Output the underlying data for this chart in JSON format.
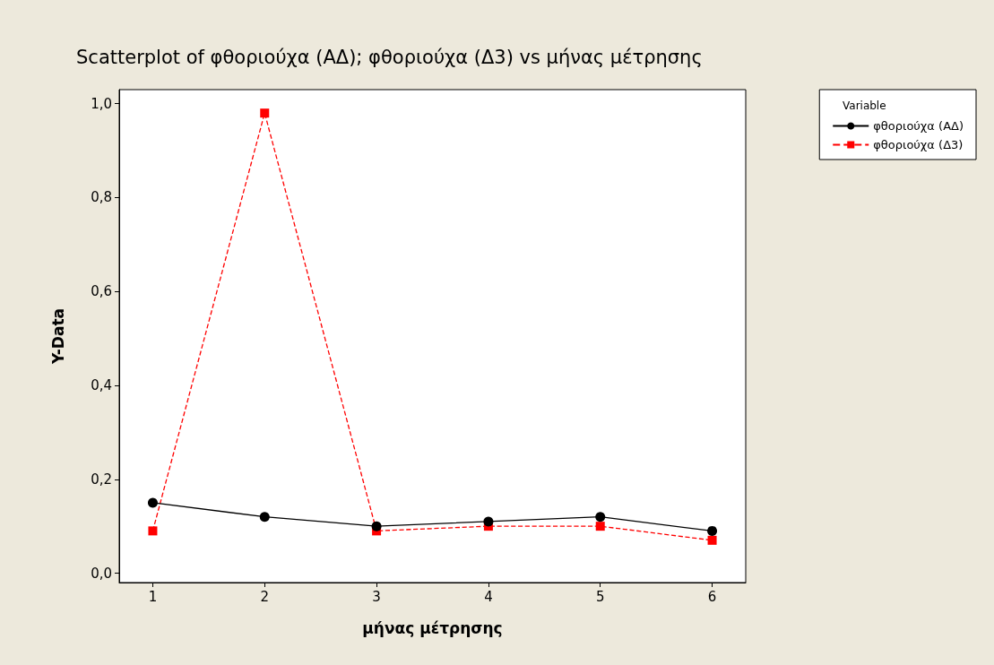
{
  "chart_data": {
    "type": "line",
    "title": "Scatterplot of φθοριούχα (ΑΔ); φθοριούχα (Δ3) vs μήνας μέτρησης",
    "xlabel": "μήνας μέτρησης",
    "ylabel": "Y-Data",
    "legend_title": "Variable",
    "legend": "top right",
    "grid": false,
    "x": [
      1,
      2,
      3,
      4,
      5,
      6
    ],
    "series": [
      {
        "name": "φθοριούχα (ΑΔ)",
        "color": "#000000",
        "marker": "circle",
        "line_style": "solid",
        "values": [
          0.15,
          0.12,
          0.1,
          0.11,
          0.12,
          0.09
        ]
      },
      {
        "name": "φθοριούχα (Δ3)",
        "color": "#ff0000",
        "marker": "square",
        "line_style": "dashed",
        "values": [
          0.09,
          0.98,
          0.09,
          0.1,
          0.1,
          0.07
        ]
      }
    ],
    "xlim": [
      0.7,
      6.3
    ],
    "xticks": [
      1,
      2,
      3,
      4,
      5,
      6
    ],
    "ylim": [
      -0.02,
      1.03
    ],
    "yticks": [
      {
        "value": 0,
        "label": "0,0"
      },
      {
        "value": 0.2,
        "label": "0,2"
      },
      {
        "value": 0.4,
        "label": "0,4"
      },
      {
        "value": 0.6,
        "label": "0,6"
      },
      {
        "value": 0.8,
        "label": "0,8"
      },
      {
        "value": 1,
        "label": "1,0"
      }
    ]
  }
}
